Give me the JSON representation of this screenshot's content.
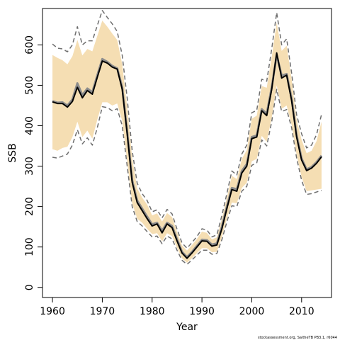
{
  "chart_data": {
    "type": "line",
    "title": "",
    "xlabel": "Year",
    "ylabel": "SSB",
    "xlim": [
      1958,
      2016
    ],
    "ylim": [
      -25,
      690
    ],
    "xticks": [
      1960,
      1970,
      1980,
      1990,
      2000,
      2010
    ],
    "yticks": [
      0,
      100,
      200,
      300,
      400,
      500,
      600
    ],
    "grid": false,
    "legend": "none",
    "footnote": "stockassessment.org, SaitheTB PB3.1, r6044",
    "colors": {
      "band": "#f5deb3",
      "ci_line": "#6e6e6e",
      "estimate": "#000000",
      "grey_line": "#8c8c8c"
    },
    "x": [
      1960,
      1961,
      1962,
      1963,
      1964,
      1965,
      1966,
      1967,
      1968,
      1969,
      1970,
      1971,
      1972,
      1973,
      1974,
      1975,
      1976,
      1977,
      1978,
      1979,
      1980,
      1981,
      1982,
      1983,
      1984,
      1985,
      1986,
      1987,
      1988,
      1989,
      1990,
      1991,
      1992,
      1993,
      1994,
      1995,
      1996,
      1997,
      1998,
      1999,
      2000,
      2001,
      2002,
      2003,
      2004,
      2005,
      2006,
      2007,
      2008,
      2009,
      2010,
      2011,
      2012,
      2013,
      2014
    ],
    "series": [
      {
        "role": "estimate",
        "values": [
          459,
          455,
          455,
          446,
          460,
          495,
          469,
          487,
          478,
          520,
          560,
          555,
          545,
          540,
          490,
          380,
          260,
          210,
          190,
          170,
          152,
          157,
          135,
          157,
          148,
          115,
          85,
          72,
          85,
          100,
          115,
          114,
          102,
          105,
          145,
          195,
          242,
          238,
          283,
          300,
          368,
          372,
          437,
          425,
          490,
          580,
          518,
          525,
          462,
          372,
          315,
          289,
          295,
          307,
          323
        ]
      },
      {
        "role": "grey-estimate",
        "values": [
          461,
          457,
          458,
          450,
          465,
          505,
          476,
          492,
          483,
          525,
          565,
          558,
          548,
          542,
          495,
          385,
          265,
          215,
          195,
          175,
          156,
          160,
          140,
          160,
          152,
          119,
          88,
          75,
          88,
          103,
          118,
          117,
          106,
          109,
          150,
          200,
          246,
          243,
          288,
          305,
          372,
          376,
          441,
          430,
          495,
          575,
          524,
          528,
          467,
          377,
          319,
          292,
          298,
          310,
          326
        ]
      },
      {
        "role": "upper-ci",
        "values": [
          602,
          592,
          590,
          583,
          600,
          645,
          600,
          610,
          610,
          648,
          685,
          668,
          652,
          633,
          574,
          468,
          338,
          258,
          232,
          215,
          187,
          192,
          172,
          193,
          182,
          144,
          110,
          97,
          111,
          126,
          145,
          142,
          125,
          130,
          178,
          232,
          288,
          278,
          330,
          352,
          432,
          438,
          515,
          510,
          590,
          680,
          600,
          615,
          530,
          427,
          380,
          345,
          352,
          378,
          428
        ]
      },
      {
        "role": "lower-ci",
        "values": [
          322,
          320,
          325,
          330,
          352,
          390,
          355,
          370,
          352,
          395,
          447,
          445,
          437,
          442,
          400,
          300,
          200,
          163,
          152,
          138,
          125,
          127,
          108,
          127,
          120,
          92,
          67,
          57,
          68,
          80,
          92,
          92,
          82,
          84,
          118,
          162,
          202,
          200,
          238,
          250,
          302,
          308,
          365,
          350,
          410,
          490,
          435,
          440,
          395,
          320,
          265,
          230,
          232,
          236,
          240
        ]
      },
      {
        "role": "band-upper",
        "values": [
          575,
          568,
          562,
          552,
          572,
          612,
          574,
          590,
          584,
          622,
          660,
          645,
          628,
          612,
          552,
          445,
          320,
          245,
          222,
          205,
          178,
          183,
          163,
          184,
          174,
          137,
          104,
          91,
          105,
          120,
          138,
          135,
          119,
          124,
          170,
          222,
          276,
          268,
          318,
          340,
          417,
          425,
          498,
          494,
          570,
          655,
          585,
          598,
          515,
          415,
          365,
          332,
          338,
          362,
          410
        ]
      },
      {
        "role": "band-lower",
        "values": [
          342,
          338,
          345,
          348,
          372,
          410,
          372,
          388,
          368,
          415,
          458,
          458,
          450,
          455,
          412,
          312,
          208,
          170,
          160,
          145,
          132,
          134,
          114,
          134,
          127,
          98,
          72,
          61,
          72,
          85,
          97,
          97,
          87,
          88,
          124,
          170,
          210,
          208,
          246,
          259,
          312,
          318,
          375,
          360,
          420,
          500,
          442,
          450,
          402,
          328,
          273,
          238,
          240,
          242,
          244
        ]
      }
    ]
  }
}
